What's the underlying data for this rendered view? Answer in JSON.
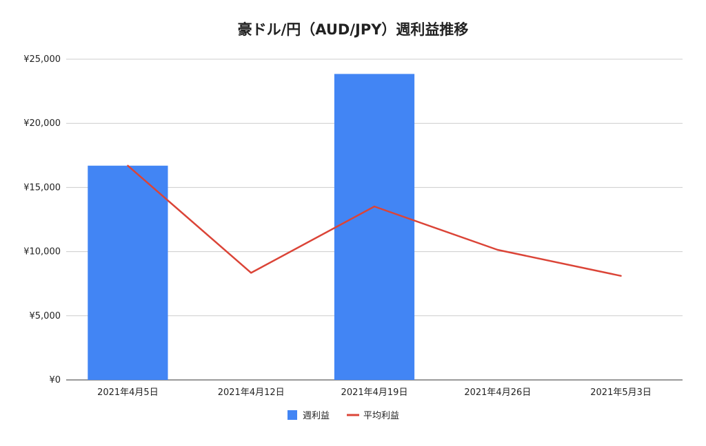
{
  "chart_data": {
    "type": "bar",
    "title": "豪ドル/円（AUD/JPY）週利益推移",
    "categories": [
      "2021年4月5日",
      "2021年4月12日",
      "2021年4月19日",
      "2021年4月26日",
      "2021年5月3日"
    ],
    "y_ticks": [
      "¥0",
      "¥5,000",
      "¥10,000",
      "¥15,000",
      "¥20,000",
      "¥25,000"
    ],
    "ylim": [
      0,
      25000
    ],
    "grid": true,
    "legend_position": "bottom",
    "series": [
      {
        "name": "週利益",
        "kind": "bar",
        "color": "#4285f4",
        "values": [
          16700,
          0,
          23850,
          0,
          0
        ]
      },
      {
        "name": "平均利益",
        "kind": "line",
        "color": "#db4437",
        "values": [
          16700,
          8350,
          13517,
          10138,
          8110
        ]
      }
    ]
  }
}
